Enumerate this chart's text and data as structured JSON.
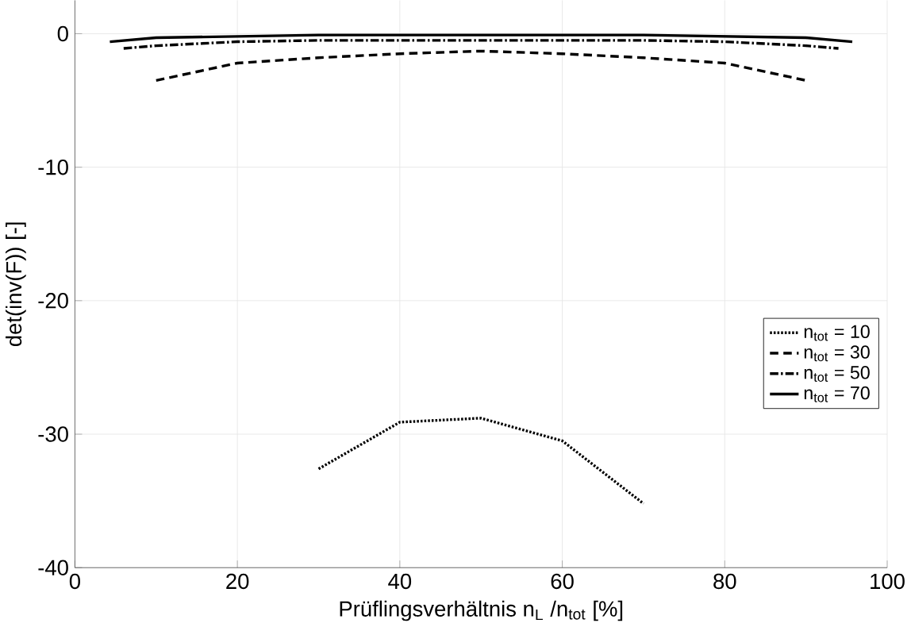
{
  "chart_data": {
    "type": "line",
    "xlabel": "Prüflingsverhältnis n$_{L}$ /n$_{tot}$ [%]",
    "ylabel": "det(inv(F)) [-]",
    "xlim": [
      0,
      100
    ],
    "ylim": [
      -40,
      2.5
    ],
    "xticks": [
      0,
      20,
      40,
      60,
      80,
      100
    ],
    "yticks": [
      -40,
      -30,
      -20,
      -10,
      0
    ],
    "grid": true,
    "legend": "right",
    "series": [
      {
        "name": "n$_{tot}$ = 10",
        "color": "#000000",
        "line_style": "dotted",
        "x": [
          30,
          40,
          50,
          60,
          70
        ],
        "values": [
          -32.6,
          -29.1,
          -28.8,
          -30.5,
          -35.2
        ]
      },
      {
        "name": "n$_{tot}$ = 30",
        "color": "#000000",
        "line_style": "dashed",
        "x": [
          10,
          20,
          30,
          40,
          50,
          60,
          70,
          80,
          90
        ],
        "values": [
          -3.5,
          -2.2,
          -1.8,
          -1.5,
          -1.3,
          -1.5,
          -1.8,
          -2.2,
          -3.5
        ]
      },
      {
        "name": "n$_{tot}$ = 50",
        "color": "#000000",
        "line_style": "dashdot",
        "x": [
          6,
          10,
          20,
          30,
          40,
          50,
          60,
          70,
          80,
          90,
          94
        ],
        "values": [
          -1.1,
          -0.9,
          -0.6,
          -0.5,
          -0.5,
          -0.5,
          -0.5,
          -0.5,
          -0.6,
          -0.9,
          -1.1
        ]
      },
      {
        "name": "n$_{tot}$ = 70",
        "color": "#000000",
        "line_style": "solid",
        "x": [
          4.3,
          10,
          20,
          30,
          40,
          50,
          60,
          70,
          80,
          90,
          95.7
        ],
        "values": [
          -0.6,
          -0.3,
          -0.2,
          -0.1,
          -0.1,
          -0.1,
          -0.1,
          -0.1,
          -0.2,
          -0.3,
          -0.6
        ]
      }
    ]
  }
}
